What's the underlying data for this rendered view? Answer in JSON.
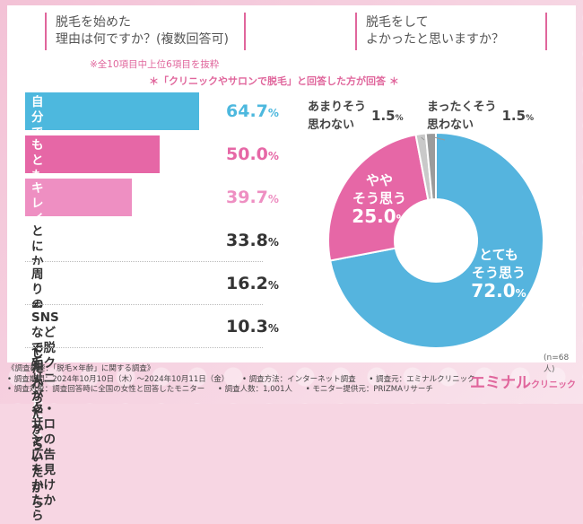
{
  "left_question": {
    "line1": "脱毛を始めた",
    "line2": "理由は何ですか？(複数回答可)"
  },
  "right_question": {
    "line1": "脱毛をして",
    "line2": "よかったと思いますか？"
  },
  "note_top10": "※全10項目中上位6項目を抜粋",
  "note_respondents": "＊「クリニックやサロンで脱毛」と回答した方が回答 ＊",
  "sample_size": "(n=68人)",
  "footer": {
    "overview": "《調査概要：「脱毛×年齢」に関する調査》",
    "period": "• 調査期間：2024年10月10日（木）～2024年10月11日（金）",
    "method": "• 調査方法：インターネット調査",
    "source": "• 調査元：エミナルクリニック",
    "target": "• 調査対象：調査回答時に全国の女性と回答したモニター",
    "count": "• 調査人数：1,001人",
    "provider": "• モニター提供元：PRIZMAリサーチ"
  },
  "brand": {
    "name": "エミナル",
    "sub": "クリニック"
  },
  "chart_data": [
    {
      "type": "bar",
      "orientation": "horizontal",
      "title": "脱毛を始めた理由は何ですか？(複数回答可)",
      "categories": [
        "自分で処理するのが\n面倒だったから",
        "もともと毛が濃いことが\n気になっていたから",
        "キレイに\nなりたかったから",
        "とにかく毛を\nなくしたかったから",
        "周りの友人や知人が\nやっていたから",
        "SNSなどで脱毛クリニック・\nサロンの広告を見かけたから"
      ],
      "values": [
        64.7,
        50.0,
        39.7,
        33.8,
        16.2,
        10.3
      ],
      "value_labels": [
        "64.7",
        "50.0",
        "39.7",
        "33.8",
        "16.2",
        "10.3"
      ],
      "unit": "%",
      "colors": [
        "#4db8de",
        "#e667a6",
        "#ee8fc2",
        "#ffffff",
        "#ffffff",
        "#ffffff"
      ],
      "value_colors": [
        "#4db8de",
        "#e667a6",
        "#ee8fc2",
        "#333333",
        "#333333",
        "#333333"
      ]
    },
    {
      "type": "pie",
      "style": "donut",
      "title": "脱毛をしてよかったと思いますか？",
      "categories": [
        "とても\nそう思う",
        "やや\nそう思う",
        "あまりそう\n思わない",
        "まったくそう\n思わない"
      ],
      "values": [
        72.0,
        25.0,
        1.5,
        1.5
      ],
      "value_labels": [
        "72.0",
        "25.0",
        "1.5",
        "1.5"
      ],
      "unit": "%",
      "colors": [
        "#55b4de",
        "#e667a6",
        "#c9c9c9",
        "#9b9b9b"
      ]
    }
  ]
}
